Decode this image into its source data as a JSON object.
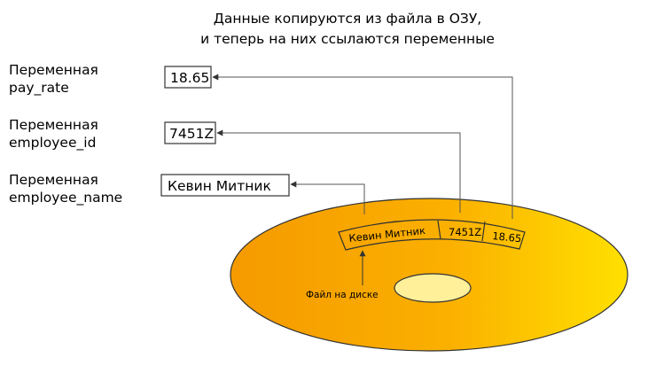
{
  "caption": {
    "line1": "Данные копируются из файла в ОЗУ,",
    "line2": "и теперь на них ссылаются переменные"
  },
  "variables": [
    {
      "label_line1": "Переменная",
      "label_line2": "pay_rate",
      "value": "18.65"
    },
    {
      "label_line1": "Переменная",
      "label_line2": "employee_id",
      "value": "7451Z"
    },
    {
      "label_line1": "Переменная",
      "label_line2": "employee_name",
      "value": "Кевин Митник"
    }
  ],
  "disk": {
    "record": [
      "Кевин Митник",
      "7451Z",
      "18.65"
    ],
    "file_label": "Файл на диске"
  },
  "colors": {
    "disk_gradient_start": "#f59a00",
    "disk_gradient_end": "#ffe000",
    "disk_hole": "#fff099",
    "line": "#555555",
    "box_border": "#333333"
  }
}
